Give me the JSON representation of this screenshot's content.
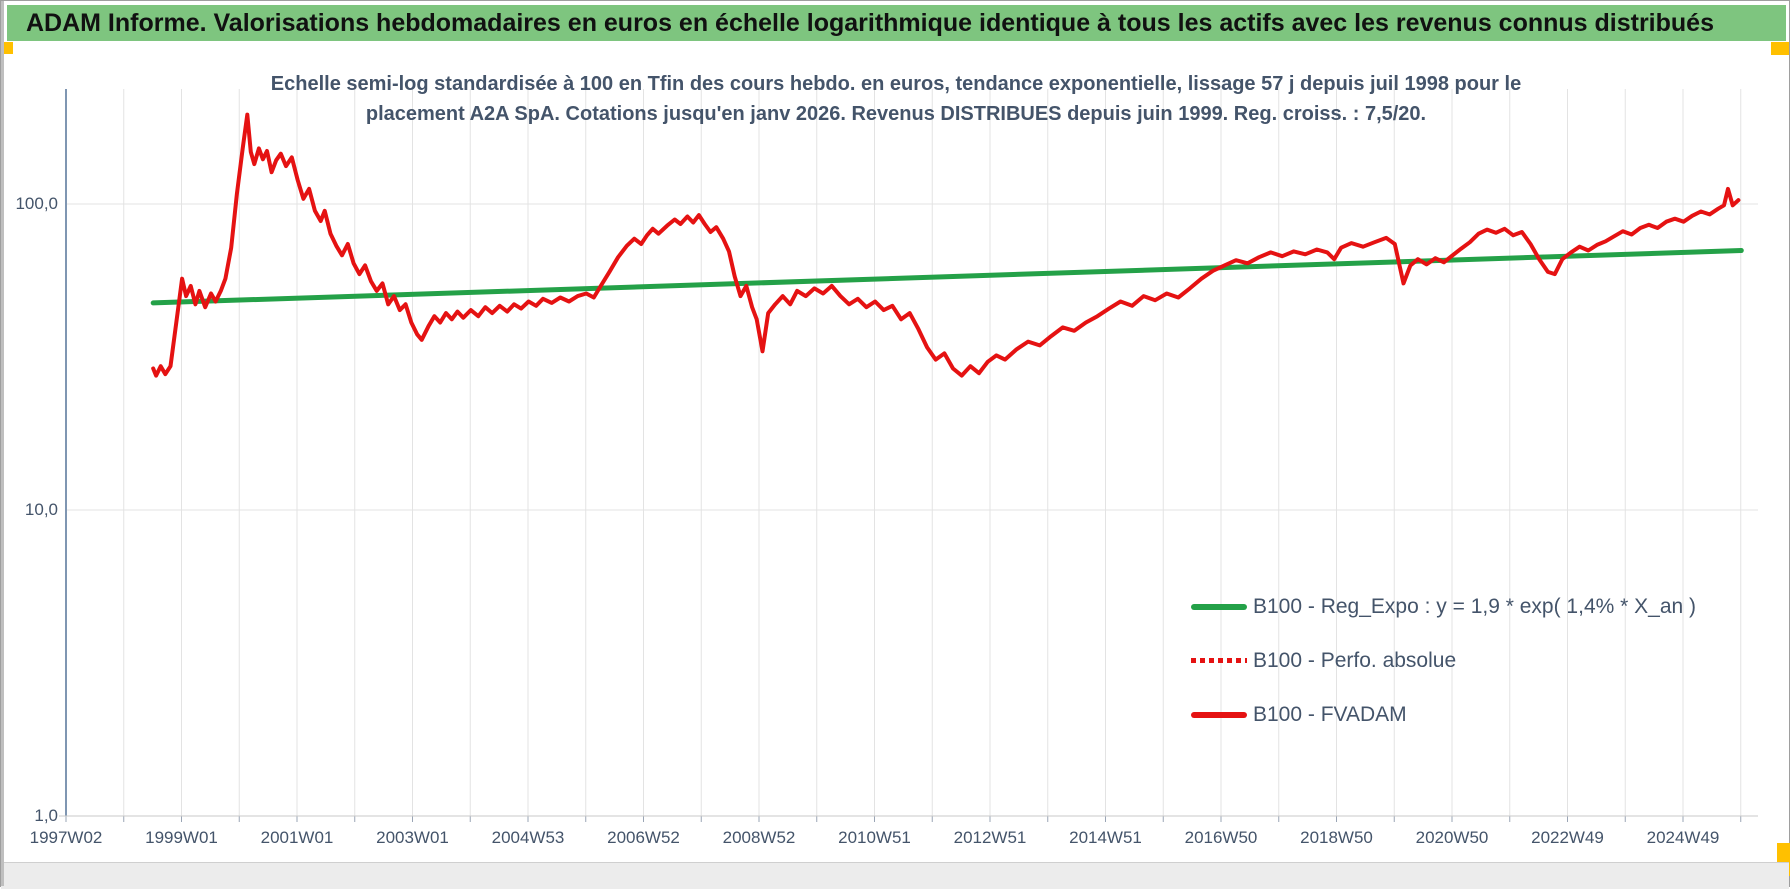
{
  "header": {
    "title": "ADAM Informe. Valorisations hebdomadaires en euros en échelle logarithmique identique à tous les actifs avec les revenus connus distribués"
  },
  "chart": {
    "title_line1": "Echelle semi-log standardisée à 100 en Tfin des cours hebdo. en euros, tendance exponentielle, lissage 57 j depuis juil 1998 pour le",
    "title_line2": "placement A2A SpA. Cotations jusqu'en janv 2026. Revenus DISTRIBUES depuis juin 1999. Reg. croiss. : 7,5/20."
  },
  "colors": {
    "header_bg": "#7ec57f",
    "header_text": "#111111",
    "title_text": "#44546a",
    "axis_text": "#44546a",
    "trend_green": "#24a148",
    "series_red": "#e51212",
    "gridline": "#e3e3e3",
    "y_axis_line": "#7f96b2",
    "baseline": "#c9c9c9",
    "tick_mark": "#9aa5b5",
    "corner_marker": "#ffc000"
  },
  "chart_data": {
    "type": "line",
    "title": "Echelle semi-log standardisée à 100 en Tfin des cours hebdo. en euros, tendance exponentielle, lissage 57 j depuis juil 1998 pour le placement A2A SpA. Cotations jusqu'en janv 2026. Revenus DISTRIBUES depuis juin 1999. Reg. croiss. : 7,5/20.",
    "grid": "on",
    "legend_position": "inside-bottom-right",
    "y_axis": {
      "scale": "log10",
      "tick_labels": [
        "1,0",
        "10,0",
        "100,0"
      ],
      "tick_values": [
        1,
        10,
        100
      ],
      "range": [
        1,
        230
      ]
    },
    "x_axis": {
      "tick_labels": [
        "1997W02",
        "1999W01",
        "2001W01",
        "2003W01",
        "2004W53",
        "2006W52",
        "2008W52",
        "2010W51",
        "2012W51",
        "2014W51",
        "2016W50",
        "2018W50",
        "2020W50",
        "2022W49",
        "2024W49"
      ],
      "years_per_label": 2,
      "start_year": 1997.04,
      "end_year": 2026.1
    },
    "series": [
      {
        "name": "B100 - Reg_Expo : y = 1,9 * exp( 1,4% * X_an )",
        "color": "#24a148",
        "style": "solid",
        "width": 5,
        "points": [
          [
            1998.55,
            47.5
          ],
          [
            2026.05,
            70.5
          ]
        ]
      },
      {
        "name": "B100 - Perfo. absolue",
        "color": "#e51212",
        "style": "dotted",
        "width": 4,
        "points": []
      },
      {
        "name": "B100 - FVADAM",
        "color": "#e51212",
        "style": "solid",
        "width": 4,
        "points": [
          [
            1998.55,
            29
          ],
          [
            1998.6,
            27.5
          ],
          [
            1998.68,
            29.5
          ],
          [
            1998.76,
            27.8
          ],
          [
            1998.85,
            29.5
          ],
          [
            1998.95,
            41
          ],
          [
            1999.05,
            57
          ],
          [
            1999.12,
            50
          ],
          [
            1999.2,
            54
          ],
          [
            1999.28,
            47
          ],
          [
            1999.35,
            52
          ],
          [
            1999.45,
            46
          ],
          [
            1999.55,
            51
          ],
          [
            1999.63,
            48
          ],
          [
            1999.72,
            52
          ],
          [
            1999.8,
            57
          ],
          [
            1999.9,
            72
          ],
          [
            2000.0,
            108
          ],
          [
            2000.1,
            152
          ],
          [
            2000.18,
            196
          ],
          [
            2000.24,
            148
          ],
          [
            2000.3,
            135
          ],
          [
            2000.38,
            152
          ],
          [
            2000.45,
            140
          ],
          [
            2000.52,
            149
          ],
          [
            2000.6,
            127
          ],
          [
            2000.68,
            139
          ],
          [
            2000.76,
            146
          ],
          [
            2000.85,
            133
          ],
          [
            2000.95,
            142
          ],
          [
            2001.05,
            120
          ],
          [
            2001.15,
            104
          ],
          [
            2001.25,
            112
          ],
          [
            2001.35,
            95
          ],
          [
            2001.45,
            88
          ],
          [
            2001.52,
            95
          ],
          [
            2001.62,
            80
          ],
          [
            2001.72,
            73
          ],
          [
            2001.82,
            68
          ],
          [
            2001.92,
            74
          ],
          [
            2002.02,
            64
          ],
          [
            2002.12,
            59
          ],
          [
            2002.22,
            63
          ],
          [
            2002.32,
            56
          ],
          [
            2002.42,
            52
          ],
          [
            2002.52,
            55
          ],
          [
            2002.62,
            47
          ],
          [
            2002.72,
            50
          ],
          [
            2002.82,
            45
          ],
          [
            2002.92,
            47
          ],
          [
            2003.02,
            41
          ],
          [
            2003.12,
            37.5
          ],
          [
            2003.2,
            36
          ],
          [
            2003.32,
            40
          ],
          [
            2003.42,
            43
          ],
          [
            2003.52,
            41
          ],
          [
            2003.62,
            44
          ],
          [
            2003.72,
            42
          ],
          [
            2003.82,
            44.5
          ],
          [
            2003.92,
            42.5
          ],
          [
            2004.05,
            45
          ],
          [
            2004.18,
            43
          ],
          [
            2004.3,
            46
          ],
          [
            2004.42,
            44
          ],
          [
            2004.55,
            46.5
          ],
          [
            2004.68,
            44.5
          ],
          [
            2004.8,
            47
          ],
          [
            2004.92,
            45.5
          ],
          [
            2005.05,
            48
          ],
          [
            2005.18,
            46.5
          ],
          [
            2005.3,
            49
          ],
          [
            2005.45,
            47.5
          ],
          [
            2005.6,
            49.5
          ],
          [
            2005.75,
            48
          ],
          [
            2005.9,
            50
          ],
          [
            2006.05,
            51
          ],
          [
            2006.18,
            49.5
          ],
          [
            2006.3,
            54
          ],
          [
            2006.45,
            60
          ],
          [
            2006.6,
            67
          ],
          [
            2006.75,
            73
          ],
          [
            2006.88,
            77
          ],
          [
            2007.0,
            74
          ],
          [
            2007.1,
            79
          ],
          [
            2007.2,
            83
          ],
          [
            2007.3,
            80
          ],
          [
            2007.45,
            85
          ],
          [
            2007.58,
            89
          ],
          [
            2007.68,
            86
          ],
          [
            2007.8,
            91
          ],
          [
            2007.9,
            87
          ],
          [
            2008.0,
            92
          ],
          [
            2008.1,
            86
          ],
          [
            2008.2,
            81
          ],
          [
            2008.3,
            84
          ],
          [
            2008.42,
            77
          ],
          [
            2008.52,
            70
          ],
          [
            2008.62,
            58
          ],
          [
            2008.72,
            50
          ],
          [
            2008.82,
            54
          ],
          [
            2008.92,
            46
          ],
          [
            2009.0,
            42
          ],
          [
            2009.1,
            33
          ],
          [
            2009.2,
            44
          ],
          [
            2009.32,
            47
          ],
          [
            2009.45,
            50
          ],
          [
            2009.58,
            47
          ],
          [
            2009.7,
            52
          ],
          [
            2009.85,
            50
          ],
          [
            2010.0,
            53
          ],
          [
            2010.15,
            51
          ],
          [
            2010.3,
            54
          ],
          [
            2010.45,
            50
          ],
          [
            2010.6,
            47
          ],
          [
            2010.75,
            49
          ],
          [
            2010.9,
            46
          ],
          [
            2011.05,
            48
          ],
          [
            2011.2,
            45
          ],
          [
            2011.35,
            46.5
          ],
          [
            2011.5,
            42
          ],
          [
            2011.65,
            44
          ],
          [
            2011.8,
            39
          ],
          [
            2011.95,
            34
          ],
          [
            2012.1,
            31
          ],
          [
            2012.25,
            32.5
          ],
          [
            2012.4,
            29
          ],
          [
            2012.55,
            27.5
          ],
          [
            2012.7,
            29.5
          ],
          [
            2012.85,
            28
          ],
          [
            2013.0,
            30.5
          ],
          [
            2013.15,
            32
          ],
          [
            2013.3,
            31
          ],
          [
            2013.5,
            33.5
          ],
          [
            2013.7,
            35.5
          ],
          [
            2013.9,
            34.5
          ],
          [
            2014.1,
            37
          ],
          [
            2014.3,
            39.5
          ],
          [
            2014.5,
            38.5
          ],
          [
            2014.7,
            41
          ],
          [
            2014.9,
            43
          ],
          [
            2015.1,
            45.5
          ],
          [
            2015.3,
            48
          ],
          [
            2015.5,
            46.5
          ],
          [
            2015.7,
            50
          ],
          [
            2015.9,
            48.5
          ],
          [
            2016.1,
            51
          ],
          [
            2016.3,
            49.5
          ],
          [
            2016.5,
            53
          ],
          [
            2016.7,
            57
          ],
          [
            2016.9,
            60.5
          ],
          [
            2017.1,
            63
          ],
          [
            2017.3,
            65.5
          ],
          [
            2017.5,
            64
          ],
          [
            2017.7,
            67
          ],
          [
            2017.9,
            69.5
          ],
          [
            2018.1,
            67.5
          ],
          [
            2018.3,
            70
          ],
          [
            2018.5,
            68.5
          ],
          [
            2018.7,
            71
          ],
          [
            2018.88,
            69.5
          ],
          [
            2019.0,
            66
          ],
          [
            2019.12,
            72
          ],
          [
            2019.3,
            74.5
          ],
          [
            2019.5,
            72.5
          ],
          [
            2019.7,
            75
          ],
          [
            2019.9,
            77.5
          ],
          [
            2020.05,
            74
          ],
          [
            2020.2,
            55
          ],
          [
            2020.32,
            63
          ],
          [
            2020.45,
            66
          ],
          [
            2020.6,
            63.5
          ],
          [
            2020.75,
            66.5
          ],
          [
            2020.9,
            64.5
          ],
          [
            2021.05,
            68
          ],
          [
            2021.2,
            71.5
          ],
          [
            2021.35,
            75
          ],
          [
            2021.5,
            80
          ],
          [
            2021.65,
            82.5
          ],
          [
            2021.8,
            80.5
          ],
          [
            2021.95,
            83
          ],
          [
            2022.1,
            79
          ],
          [
            2022.25,
            81
          ],
          [
            2022.4,
            74
          ],
          [
            2022.55,
            66
          ],
          [
            2022.7,
            60
          ],
          [
            2022.82,
            59
          ],
          [
            2022.95,
            66
          ],
          [
            2023.1,
            69.5
          ],
          [
            2023.25,
            72.5
          ],
          [
            2023.4,
            70.5
          ],
          [
            2023.55,
            73.5
          ],
          [
            2023.7,
            75.5
          ],
          [
            2023.85,
            78.5
          ],
          [
            2024.0,
            81.5
          ],
          [
            2024.15,
            79.5
          ],
          [
            2024.3,
            83.5
          ],
          [
            2024.45,
            85.5
          ],
          [
            2024.6,
            83.5
          ],
          [
            2024.75,
            87.5
          ],
          [
            2024.9,
            89.5
          ],
          [
            2025.05,
            87.5
          ],
          [
            2025.2,
            91.5
          ],
          [
            2025.35,
            94.5
          ],
          [
            2025.5,
            92.5
          ],
          [
            2025.65,
            96.5
          ],
          [
            2025.75,
            99
          ],
          [
            2025.82,
            112
          ],
          [
            2025.9,
            99
          ],
          [
            2026.0,
            103
          ]
        ]
      }
    ]
  }
}
